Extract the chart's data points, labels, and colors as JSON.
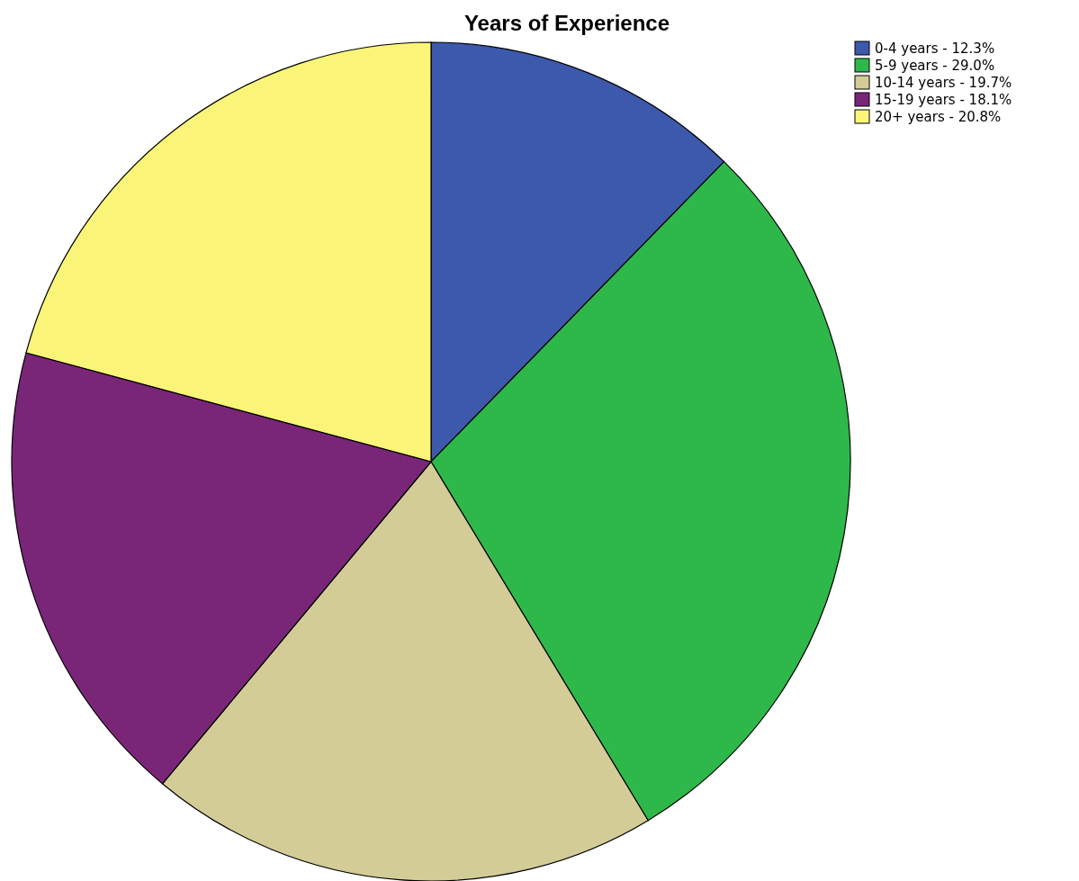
{
  "chart_data": {
    "type": "pie",
    "title": "Years of Experience",
    "categories": [
      "0-4 years - 12.3%",
      "5-9 years - 29.0%",
      "10-14 years - 19.7%",
      "15-19 years - 18.1%",
      "20+ years - 20.8%"
    ],
    "values": [
      12.3,
      29.0,
      19.7,
      18.1,
      20.8
    ],
    "colors": [
      "#3d59ab",
      "#2eb84a",
      "#d4cc96",
      "#7a2678",
      "#faf578"
    ],
    "legend": "top right"
  }
}
